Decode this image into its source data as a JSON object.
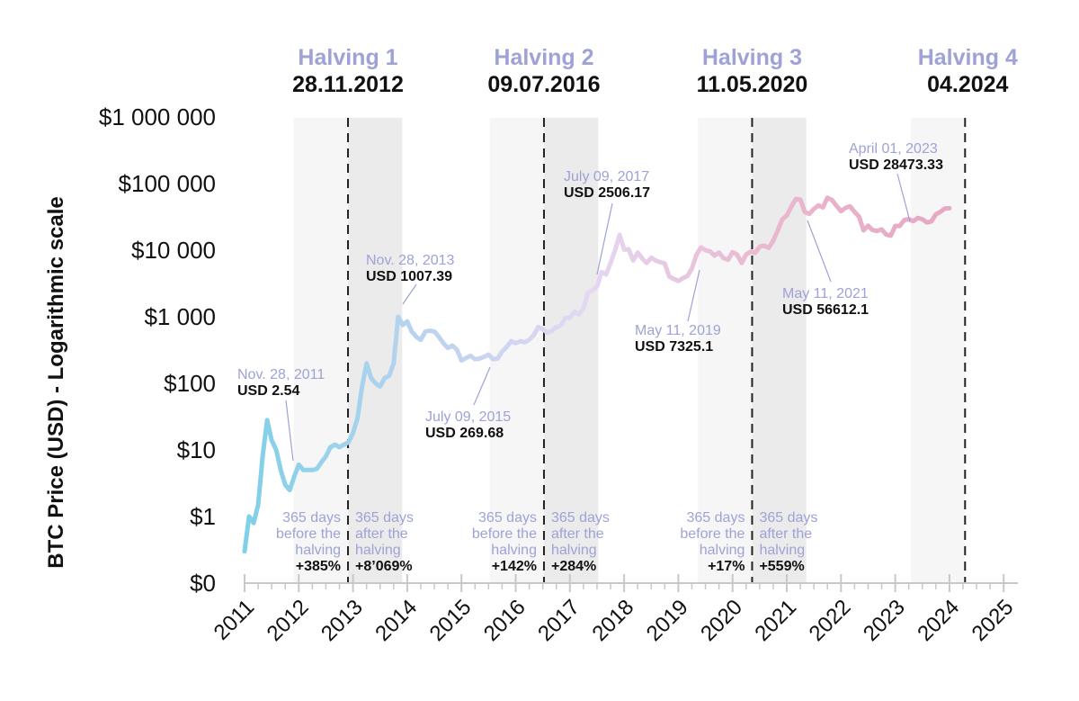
{
  "chart_data": {
    "type": "line",
    "title": "",
    "ylabel": "BTC Price (USD) - Logarithmic scale",
    "xlabel": "",
    "y_scale": "log",
    "ylim": [
      0.1,
      1000000
    ],
    "xlim": [
      "2011-01",
      "2025-01"
    ],
    "x_ticks": [
      "2011",
      "2012",
      "2013",
      "2014",
      "2015",
      "2016",
      "2017",
      "2018",
      "2019",
      "2020",
      "2021",
      "2022",
      "2023",
      "2024",
      "2025"
    ],
    "y_ticks": [
      {
        "value": 0.1,
        "label": "$0"
      },
      {
        "value": 1,
        "label": "$1"
      },
      {
        "value": 10,
        "label": "$10"
      },
      {
        "value": 100,
        "label": "$100"
      },
      {
        "value": 1000,
        "label": "$1 000"
      },
      {
        "value": 10000,
        "label": "$10 000"
      },
      {
        "value": 100000,
        "label": "$100 000"
      },
      {
        "value": 1000000,
        "label": "$1 000 000"
      }
    ],
    "grid": false,
    "line_colors": [
      "#7fd0e8",
      "#b9d3ef",
      "#e4d8f2",
      "#eab8cf",
      "#e6a9c4"
    ],
    "series": [
      {
        "dates": [
          "2011-01",
          "2011-02",
          "2011-03",
          "2011-04",
          "2011-05",
          "2011-06",
          "2011-07",
          "2011-08",
          "2011-09",
          "2011-10",
          "2011-11",
          "2011-12",
          "2012-01",
          "2012-02",
          "2012-03",
          "2012-04",
          "2012-05",
          "2012-06",
          "2012-07",
          "2012-08",
          "2012-09",
          "2012-10",
          "2012-11",
          "2012-12",
          "2013-01",
          "2013-02",
          "2013-03",
          "2013-04",
          "2013-05",
          "2013-06",
          "2013-07",
          "2013-08",
          "2013-09",
          "2013-10",
          "2013-11",
          "2013-12",
          "2014-01",
          "2014-02",
          "2014-03",
          "2014-04",
          "2014-05",
          "2014-06",
          "2014-07",
          "2014-08",
          "2014-09",
          "2014-10",
          "2014-11",
          "2014-12",
          "2015-01",
          "2015-02",
          "2015-03",
          "2015-04",
          "2015-05",
          "2015-06",
          "2015-07",
          "2015-08",
          "2015-09",
          "2015-10",
          "2015-11",
          "2015-12",
          "2016-01",
          "2016-02",
          "2016-03",
          "2016-04",
          "2016-05",
          "2016-06",
          "2016-07",
          "2016-08",
          "2016-09",
          "2016-10",
          "2016-11",
          "2016-12",
          "2017-01",
          "2017-02",
          "2017-03",
          "2017-04",
          "2017-05",
          "2017-06",
          "2017-07",
          "2017-08",
          "2017-09",
          "2017-10",
          "2017-11",
          "2017-12",
          "2018-01",
          "2018-02",
          "2018-03",
          "2018-04",
          "2018-05",
          "2018-06",
          "2018-07",
          "2018-08",
          "2018-09",
          "2018-10",
          "2018-11",
          "2018-12",
          "2019-01",
          "2019-02",
          "2019-03",
          "2019-04",
          "2019-05",
          "2019-06",
          "2019-07",
          "2019-08",
          "2019-09",
          "2019-10",
          "2019-11",
          "2019-12",
          "2020-01",
          "2020-02",
          "2020-03",
          "2020-04",
          "2020-05",
          "2020-06",
          "2020-07",
          "2020-08",
          "2020-09",
          "2020-10",
          "2020-11",
          "2020-12",
          "2021-01",
          "2021-02",
          "2021-03",
          "2021-04",
          "2021-05",
          "2021-06",
          "2021-07",
          "2021-08",
          "2021-09",
          "2021-10",
          "2021-11",
          "2021-12",
          "2022-01",
          "2022-02",
          "2022-03",
          "2022-04",
          "2022-05",
          "2022-06",
          "2022-07",
          "2022-08",
          "2022-09",
          "2022-10",
          "2022-11",
          "2022-12",
          "2023-01",
          "2023-02",
          "2023-03",
          "2023-04",
          "2023-05",
          "2023-06",
          "2023-07",
          "2023-08",
          "2023-09",
          "2023-10",
          "2023-11",
          "2023-12",
          "2024-01"
        ],
        "prices": [
          0.3,
          1.0,
          0.8,
          1.5,
          8,
          28,
          14,
          10,
          5,
          3,
          2.5,
          4,
          6,
          5,
          5,
          5,
          5.2,
          6.5,
          8,
          11,
          12,
          11,
          12,
          13,
          18,
          30,
          90,
          200,
          120,
          100,
          90,
          120,
          130,
          200,
          1000,
          750,
          850,
          600,
          500,
          450,
          600,
          620,
          600,
          500,
          400,
          340,
          370,
          320,
          220,
          240,
          260,
          230,
          235,
          250,
          270,
          230,
          235,
          300,
          350,
          430,
          400,
          430,
          415,
          450,
          530,
          700,
          650,
          575,
          610,
          700,
          740,
          960,
          970,
          1190,
          1080,
          1350,
          2300,
          2500,
          2870,
          4700,
          4300,
          6400,
          10000,
          17000,
          10200,
          10300,
          7000,
          9200,
          7500,
          6400,
          7700,
          7000,
          6600,
          6300,
          4000,
          3700,
          3450,
          3800,
          4100,
          5300,
          8500,
          11000,
          10000,
          9600,
          8300,
          9200,
          7600,
          7200,
          9350,
          8600,
          6400,
          8600,
          9450,
          9100,
          11300,
          11700,
          10800,
          13800,
          19700,
          29000,
          33000,
          45000,
          58800,
          57700,
          37300,
          35000,
          41500,
          47100,
          43800,
          61300,
          57000,
          46300,
          38500,
          43200,
          45500,
          37700,
          31800,
          19800,
          23300,
          20000,
          19400,
          20500,
          17200,
          16500,
          23100,
          23100,
          28400,
          29200,
          27200,
          30500,
          29200,
          26000,
          27000,
          34500,
          37700,
          42300,
          42600
        ]
      }
    ],
    "halvings": [
      {
        "label": "Halving 1",
        "date_label": "28.11.2012",
        "date": "2012-11-28",
        "before_text": "365 days before the halving",
        "before_change": "+385%",
        "after_text": "365 days after the halving",
        "after_change": "+8’069%"
      },
      {
        "label": "Halving 2",
        "date_label": "09.07.2016",
        "date": "2016-07-09",
        "before_text": "365 days before the halving",
        "before_change": "+142%",
        "after_text": "365 days after the halving",
        "after_change": "+284%"
      },
      {
        "label": "Halving 3",
        "date_label": "11.05.2020",
        "date": "2020-05-11",
        "before_text": "365 days before the halving",
        "before_change": "+17%",
        "after_text": "365 days after the halving",
        "after_change": "+559%"
      },
      {
        "label": "Halving 4",
        "date_label": "04.2024",
        "date": "2024-04-15"
      }
    ],
    "annotations": [
      {
        "date_label": "Nov. 28, 2011",
        "price_label": "USD 2.54",
        "date": "2011-11-28",
        "price": 2.54
      },
      {
        "date_label": "Nov. 28, 2013",
        "price_label": "USD 1007.39",
        "date": "2013-11-28",
        "price": 1007.39
      },
      {
        "date_label": "July 09, 2015",
        "price_label": "USD 269.68",
        "date": "2015-07-09",
        "price": 269.68
      },
      {
        "date_label": "July 09, 2017",
        "price_label": "USD 2506.17",
        "date": "2017-07-09",
        "price": 2506.17
      },
      {
        "date_label": "May 11, 2019",
        "price_label": "USD 7325.1",
        "date": "2019-05-11",
        "price": 7325.1
      },
      {
        "date_label": "May 11, 2021",
        "price_label": "USD 56612.1",
        "date": "2021-05-11",
        "price": 56612.1
      },
      {
        "date_label": "April 01, 2023",
        "price_label": "USD 28473.33",
        "date": "2023-04-01",
        "price": 28473.33
      }
    ]
  }
}
